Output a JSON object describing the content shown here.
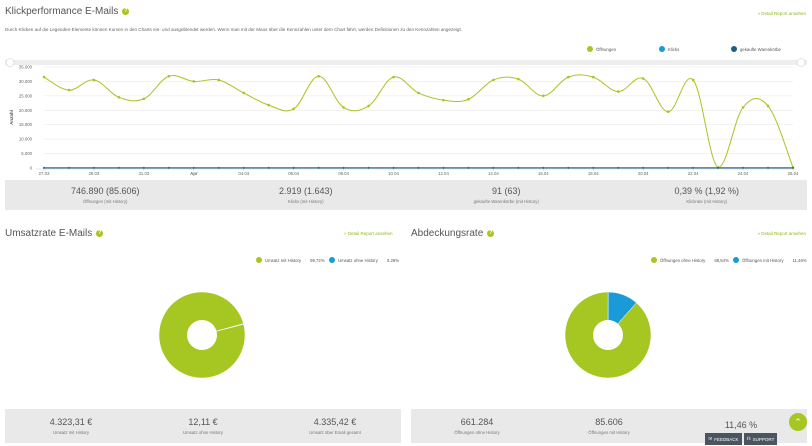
{
  "top": {
    "title": "Klickperformance E-Mails",
    "help": "?",
    "detail_link": "» Detail Report ansehen",
    "description": "Durch Klicken auf die Legenden-Elemente können Kurven in den Charts ein- und ausgeblendet werden. Wenn man mit der Maus über die Kennzahlen unter dem Chart fährt, werden Definitionen zu den Kennzahlen angezeigt.",
    "legend": [
      {
        "label": "Öffnungen",
        "color": "#a6c622"
      },
      {
        "label": "Klicks",
        "color": "#1a9ad6"
      },
      {
        "label": "gekaufte Warenkörbe",
        "color": "#1d5f86"
      }
    ],
    "stats": [
      {
        "value": "746.890 (85.606)",
        "label": "Öffnungen (mit History)"
      },
      {
        "value": "2.919 (1.643)",
        "label": "Klicks (mit History)"
      },
      {
        "value": "91 (63)",
        "label": "gekaufte Warenkörbe (mit History)"
      },
      {
        "value": "0,39 % (1,92 %)",
        "label": "Klickrate (mit History)"
      }
    ]
  },
  "chart_data": [
    {
      "type": "line",
      "ylabel": "Anzahl",
      "ylim": [
        0,
        35000
      ],
      "yticks": [
        "0",
        "5.000",
        "10.000",
        "15.000",
        "20.000",
        "25.000",
        "30.000",
        "35.000"
      ],
      "xticks": [
        "27.03",
        "29.03",
        "31.03",
        "Apr",
        "04.04",
        "06.04",
        "08.04",
        "10.04",
        "12.04",
        "14.04",
        "16.04",
        "18.04",
        "20.04",
        "22.04",
        "24.04",
        "26.04"
      ],
      "x_range_days": [
        0,
        30
      ],
      "series": [
        {
          "name": "Öffnungen",
          "color": "#a6c622",
          "values": [
            31500,
            27000,
            30500,
            24500,
            24000,
            31800,
            30000,
            30500,
            26000,
            21800,
            20500,
            31800,
            21000,
            21500,
            31500,
            26000,
            23500,
            23800,
            30500,
            30800,
            25000,
            31500,
            31500,
            26500,
            31000,
            19500,
            30500,
            200,
            21000,
            21500,
            200
          ]
        },
        {
          "name": "Klicks",
          "color": "#1a9ad6",
          "values": [
            100,
            100,
            100,
            100,
            100,
            100,
            100,
            100,
            100,
            100,
            100,
            100,
            100,
            100,
            100,
            100,
            100,
            100,
            100,
            100,
            100,
            100,
            100,
            100,
            100,
            100,
            100,
            100,
            100,
            100,
            100
          ]
        },
        {
          "name": "gekaufte Warenkörbe",
          "color": "#1d5f86",
          "values": [
            3,
            3,
            3,
            3,
            3,
            3,
            3,
            3,
            3,
            3,
            3,
            3,
            3,
            3,
            3,
            3,
            3,
            3,
            3,
            3,
            3,
            3,
            3,
            3,
            3,
            3,
            3,
            3,
            3,
            3,
            3
          ]
        }
      ]
    },
    {
      "type": "pie",
      "slices": [
        {
          "name": "Umsatz mit History",
          "value": 99.72,
          "color": "#a6c622"
        },
        {
          "name": "Umsatz ohne History",
          "value": 0.28,
          "color": "#1a9ad6"
        }
      ]
    },
    {
      "type": "pie",
      "slices": [
        {
          "name": "Öffnungen ohne History",
          "value": 88.54,
          "color": "#a6c622"
        },
        {
          "name": "Öffnungen mit History",
          "value": 11.46,
          "color": "#1a9ad6"
        }
      ]
    }
  ],
  "left": {
    "title": "Umsatzrate E-Mails",
    "help": "?",
    "detail_link": "» Detail Report ansehen",
    "legend": [
      {
        "label": "Umsatz mit History",
        "pct": "99,72%",
        "color": "#a6c622"
      },
      {
        "label": "Umsatz ohne History",
        "pct": "0,28%",
        "color": "#1a9ad6"
      }
    ],
    "stats": [
      {
        "value": "4.323,31 €",
        "label": "Umsatz mit History"
      },
      {
        "value": "12,11 €",
        "label": "Umsatz ohne History"
      },
      {
        "value": "4.335,42 €",
        "label": "Umsatz über Email gesamt"
      }
    ]
  },
  "right": {
    "title": "Abdeckungsrate",
    "help": "?",
    "detail_link": "» Detail Report ansehen",
    "legend": [
      {
        "label": "Öffnungen ohne History",
        "pct": "88,54%",
        "color": "#a6c622"
      },
      {
        "label": "Öffnungen mit History",
        "pct": "11,46%",
        "color": "#1a9ad6"
      }
    ],
    "stats": [
      {
        "value": "661.284",
        "label": "Öffnungen ohne History"
      },
      {
        "value": "85.606",
        "label": "Öffnungen mit History"
      },
      {
        "value": "11,46 %",
        "label": ""
      }
    ]
  },
  "footer": {
    "feedback": "FEEDBACK",
    "support": "SUPPORT",
    "fab_icon": "chevron-up-icon",
    "fab_glyph": "⌃"
  }
}
